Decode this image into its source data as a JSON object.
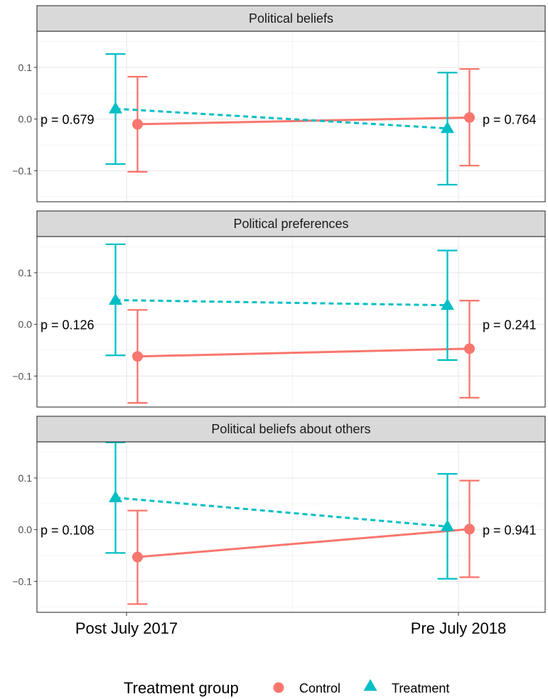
{
  "chart_data": {
    "type": "line",
    "x": [
      "Post July 2017",
      "Pre July 2018"
    ],
    "ylim": [
      -0.16,
      0.17
    ],
    "yticks": [
      -0.1,
      0.0,
      0.1
    ],
    "ytick_labels": [
      "−0.1",
      "0.0",
      "0.1"
    ],
    "grid": true,
    "legend": {
      "title": "Treatment group",
      "position": "bottom",
      "items": [
        {
          "label": "Control",
          "color": "#F8766D",
          "shape": "circle",
          "linetype": "solid"
        },
        {
          "label": "Treatment",
          "color": "#00BFC4",
          "shape": "triangle",
          "linetype": "dashed"
        }
      ]
    },
    "panels": [
      {
        "title": "Political beliefs",
        "series": [
          {
            "name": "Control",
            "values": [
              -0.01,
              0.003
            ],
            "lower": [
              -0.102,
              -0.09
            ],
            "upper": [
              0.082,
              0.097
            ]
          },
          {
            "name": "Treatment",
            "values": [
              0.02,
              -0.018
            ],
            "lower": [
              -0.087,
              -0.127
            ],
            "upper": [
              0.126,
              0.09
            ]
          }
        ],
        "p_labels": [
          "p = 0.679",
          "p = 0.764"
        ]
      },
      {
        "title": "Political preferences",
        "series": [
          {
            "name": "Control",
            "values": [
              -0.062,
              -0.047
            ],
            "lower": [
              -0.152,
              -0.142
            ],
            "upper": [
              0.028,
              0.046
            ]
          },
          {
            "name": "Treatment",
            "values": [
              0.047,
              0.037
            ],
            "lower": [
              -0.06,
              -0.069
            ],
            "upper": [
              0.155,
              0.143
            ]
          }
        ],
        "p_labels": [
          "p = 0.126",
          "p = 0.241"
        ]
      },
      {
        "title": "Political beliefs about others",
        "series": [
          {
            "name": "Control",
            "values": [
              -0.053,
              0.001
            ],
            "lower": [
              -0.144,
              -0.092
            ],
            "upper": [
              0.037,
              0.095
            ]
          },
          {
            "name": "Treatment",
            "values": [
              0.062,
              0.006
            ],
            "lower": [
              -0.045,
              -0.095
            ],
            "upper": [
              0.169,
              0.108
            ]
          }
        ],
        "p_labels": [
          "p = 0.108",
          "p = 0.941"
        ]
      }
    ]
  }
}
